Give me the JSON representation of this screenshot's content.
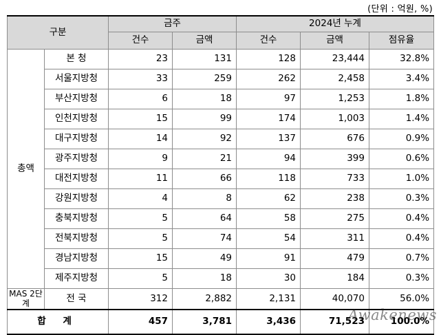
{
  "unit_label": "(단위 : 억원, %)",
  "header": {
    "category": "구분",
    "week_group": "금주",
    "cumulative_group": "2024년 누계",
    "count": "건수",
    "amount": "금액",
    "share": "점유율"
  },
  "group_label": "총액",
  "rows": [
    {
      "name": "본  청",
      "w_count": "23",
      "w_amount": "131",
      "c_count": "128",
      "c_amount": "23,444",
      "share": "32.8%"
    },
    {
      "name": "서울지방청",
      "w_count": "33",
      "w_amount": "259",
      "c_count": "262",
      "c_amount": "2,458",
      "share": "3.4%"
    },
    {
      "name": "부산지방청",
      "w_count": "6",
      "w_amount": "18",
      "c_count": "97",
      "c_amount": "1,253",
      "share": "1.8%"
    },
    {
      "name": "인천지방청",
      "w_count": "15",
      "w_amount": "99",
      "c_count": "174",
      "c_amount": "1,003",
      "share": "1.4%"
    },
    {
      "name": "대구지방청",
      "w_count": "14",
      "w_amount": "92",
      "c_count": "137",
      "c_amount": "676",
      "share": "0.9%"
    },
    {
      "name": "광주지방청",
      "w_count": "9",
      "w_amount": "21",
      "c_count": "94",
      "c_amount": "399",
      "share": "0.6%"
    },
    {
      "name": "대전지방청",
      "w_count": "11",
      "w_amount": "66",
      "c_count": "118",
      "c_amount": "733",
      "share": "1.0%"
    },
    {
      "name": "강원지방청",
      "w_count": "4",
      "w_amount": "8",
      "c_count": "62",
      "c_amount": "238",
      "share": "0.3%"
    },
    {
      "name": "충북지방청",
      "w_count": "5",
      "w_amount": "64",
      "c_count": "58",
      "c_amount": "275",
      "share": "0.4%"
    },
    {
      "name": "전북지방청",
      "w_count": "5",
      "w_amount": "74",
      "c_count": "54",
      "c_amount": "311",
      "share": "0.4%"
    },
    {
      "name": "경남지방청",
      "w_count": "15",
      "w_amount": "49",
      "c_count": "91",
      "c_amount": "479",
      "share": "0.7%"
    },
    {
      "name": "제주지방청",
      "w_count": "5",
      "w_amount": "18",
      "c_count": "30",
      "c_amount": "184",
      "share": "0.3%"
    }
  ],
  "mas_row": {
    "label": "MAS 2단계",
    "name": "전  국",
    "w_count": "312",
    "w_amount": "2,882",
    "c_count": "2,131",
    "c_amount": "40,070",
    "share": "56.0%"
  },
  "total_row": {
    "label": "합 계",
    "w_count": "457",
    "w_amount": "3,781",
    "c_count": "3,436",
    "c_amount": "71,523",
    "share": "100.0%"
  },
  "watermark": "Awakenews"
}
